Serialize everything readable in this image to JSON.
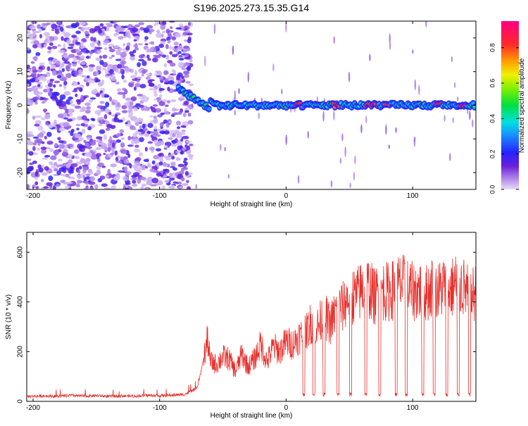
{
  "title": "S196.2025.273.15.35.G14",
  "colors": {
    "snr_line": "#e8302c",
    "axis": "#000000",
    "background": "#ffffff"
  },
  "chart_data": [
    {
      "type": "heatmap",
      "title": "S196.2025.273.15.35.G14",
      "xlabel": "Height of straight line (km)",
      "ylabel": "Frequency (Hz)",
      "xlim": [
        -205,
        150
      ],
      "ylim": [
        -25,
        25
      ],
      "xticks": [
        -200,
        -100,
        0,
        100
      ],
      "xtick_labels": [
        "-200",
        "-100",
        "0",
        "100"
      ],
      "yticks": [
        -20,
        -10,
        0,
        10,
        20
      ],
      "ytick_labels": [
        "-20",
        "-10",
        "0",
        "10",
        "20"
      ],
      "colorbar": {
        "label": "Normalized spectral amplitude",
        "range": [
          0,
          0.95
        ],
        "ticks": [
          0.0,
          0.2,
          0.4,
          0.6,
          0.8
        ],
        "tick_labels": [
          "0.0",
          "0.2",
          "0.4",
          "0.6",
          "0.8"
        ],
        "colormap": "rainbow (light purple → blue → cyan → green → yellow → orange → red → magenta)"
      },
      "description_of_content": {
        "noise_region_km": [
          -205,
          -75
        ],
        "signal_track_frequency_hz": 0,
        "signal_track_start_km": -85,
        "strong_peaks_km": [
          10,
          40,
          65,
          70,
          80,
          120,
          140
        ]
      }
    },
    {
      "type": "line",
      "xlabel": "Height of straight line (km)",
      "ylabel": "SNR (10 * v/v)",
      "xlim": [
        -205,
        150
      ],
      "ylim": [
        0,
        680
      ],
      "xticks": [
        -200,
        -100,
        0,
        100
      ],
      "xtick_labels": [
        "-200",
        "-100",
        "0",
        "100"
      ],
      "yticks": [
        0,
        200,
        400,
        600
      ],
      "ytick_labels": [
        "0",
        "200",
        "400",
        "600"
      ],
      "series": [
        {
          "name": "SNR",
          "x": [
            -205,
            -190,
            -180,
            -170,
            -160,
            -150,
            -140,
            -130,
            -120,
            -110,
            -100,
            -90,
            -80,
            -70,
            -62,
            -60,
            -55,
            -50,
            -45,
            -40,
            -35,
            -30,
            -25,
            -20,
            -15,
            -10,
            -5,
            0,
            5,
            10,
            15,
            20,
            25,
            30,
            35,
            40,
            45,
            50,
            55,
            60,
            65,
            70,
            75,
            80,
            85,
            90,
            95,
            100,
            105,
            110,
            115,
            120,
            125,
            130,
            135,
            140,
            145,
            150
          ],
          "values": [
            20,
            22,
            20,
            24,
            21,
            23,
            20,
            22,
            21,
            24,
            22,
            25,
            28,
            55,
            250,
            160,
            150,
            180,
            170,
            120,
            190,
            140,
            170,
            230,
            160,
            220,
            200,
            240,
            230,
            260,
            270,
            320,
            300,
            350,
            310,
            370,
            380,
            430,
            420,
            450,
            460,
            420,
            450,
            440,
            450,
            470,
            460,
            440,
            450,
            430,
            460,
            440,
            470,
            450,
            480,
            460,
            420,
            440
          ],
          "dropouts_km": [
            14,
            22,
            30,
            41,
            51,
            63,
            74,
            87,
            95,
            108,
            117,
            127,
            136,
            145
          ]
        }
      ]
    }
  ]
}
